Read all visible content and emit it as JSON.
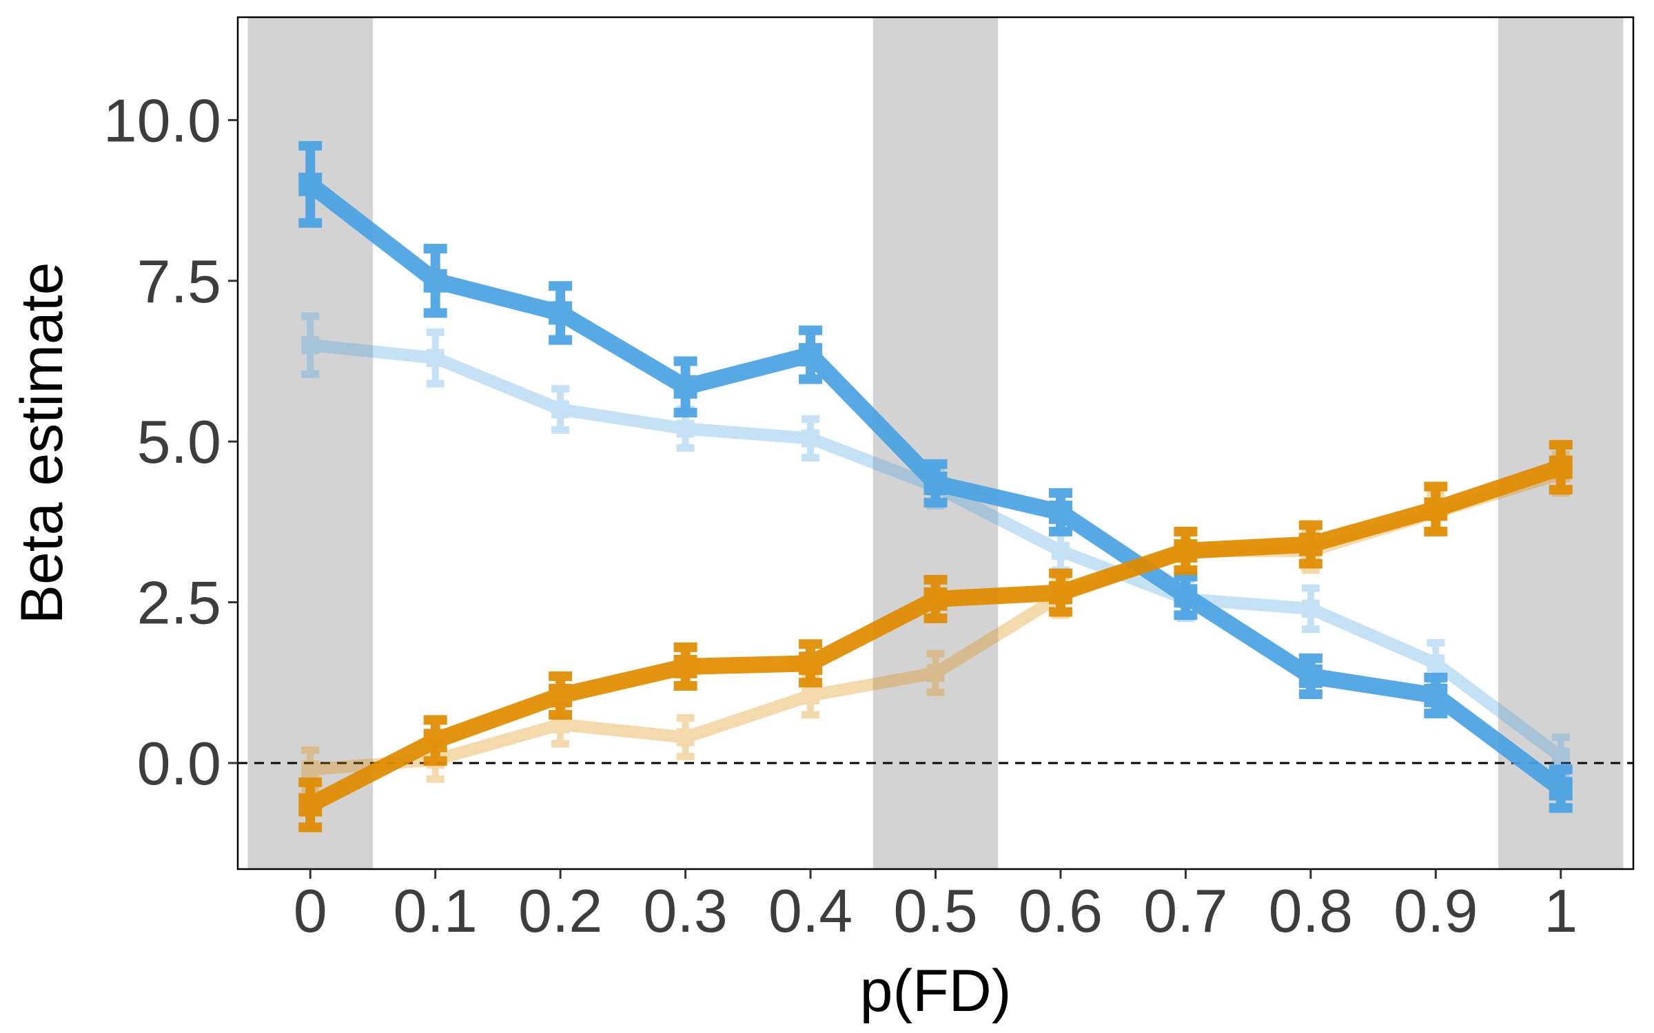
{
  "chart_data": {
    "type": "line",
    "xlabel": "p(FD)",
    "ylabel": "Beta estimate",
    "x": [
      0,
      0.1,
      0.2,
      0.3,
      0.4,
      0.5,
      0.6,
      0.7,
      0.8,
      0.9,
      1
    ],
    "x_tick_labels": [
      "0",
      "0.1",
      "0.2",
      "0.3",
      "0.4",
      "0.5",
      "0.6",
      "0.7",
      "0.8",
      "0.9",
      "1"
    ],
    "y_ticks": [
      0,
      2.5,
      5,
      7.5,
      10
    ],
    "y_tick_labels": [
      "0.0",
      "2.5",
      "5.0",
      "7.5",
      "10.0"
    ],
    "xlim": [
      -0.058,
      1.058
    ],
    "ylim": [
      -1.65,
      11.6
    ],
    "reference_line_y": 0,
    "shaded_x": [
      0,
      0.5,
      1
    ],
    "shaded_half_width": 0.05,
    "grid": false,
    "legend": "none",
    "series": [
      {
        "color": "#4aa3e3",
        "emphasis": "strong",
        "values": [
          9.0,
          7.5,
          7.0,
          5.85,
          6.35,
          4.35,
          3.9,
          2.6,
          1.35,
          1.05,
          -0.4
        ],
        "err": [
          0.6,
          0.5,
          0.42,
          0.4,
          0.38,
          0.3,
          0.3,
          0.3,
          0.28,
          0.28,
          0.3
        ]
      },
      {
        "color": "#e08c00",
        "emphasis": "strong",
        "values": [
          -0.65,
          0.35,
          1.05,
          1.5,
          1.55,
          2.55,
          2.65,
          3.3,
          3.4,
          3.95,
          4.6
        ],
        "err": [
          0.35,
          0.32,
          0.3,
          0.3,
          0.3,
          0.3,
          0.3,
          0.3,
          0.3,
          0.35,
          0.35
        ]
      },
      {
        "color": "#4aa3e3",
        "emphasis": "faint",
        "values": [
          6.5,
          6.3,
          5.5,
          5.2,
          5.05,
          4.3,
          3.3,
          2.55,
          2.4,
          1.55,
          0.1
        ],
        "err": [
          0.45,
          0.4,
          0.32,
          0.3,
          0.3,
          0.3,
          0.3,
          0.3,
          0.32,
          0.32,
          0.3
        ]
      },
      {
        "color": "#e08c00",
        "emphasis": "faint",
        "values": [
          -0.1,
          0.05,
          0.6,
          0.4,
          1.05,
          1.4,
          2.6,
          3.3,
          3.3,
          3.9,
          4.5
        ],
        "err": [
          0.3,
          0.3,
          0.3,
          0.3,
          0.3,
          0.3,
          0.3,
          0.3,
          0.3,
          0.3,
          0.3
        ]
      }
    ]
  }
}
